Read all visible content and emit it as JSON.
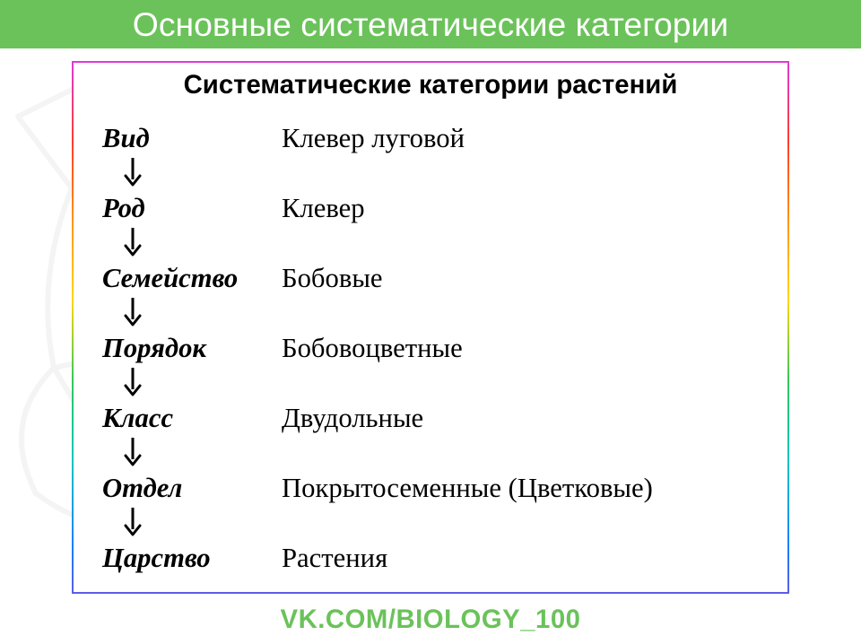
{
  "header": {
    "title": "Основные систематические категории",
    "background_color": "#6bc25a",
    "text_color": "#ffffff",
    "font_size_pt": 28
  },
  "content": {
    "box_title": "Систематические категории растений",
    "box_title_font_size_pt": 22,
    "box_title_color": "#000000",
    "rank_font_size_pt": 23,
    "example_font_size_pt": 23,
    "text_color": "#000000",
    "arrow_color": "#000000",
    "arrow_stroke_width": 3,
    "rows": [
      {
        "rank": "Вид",
        "example": "Клевер луговой"
      },
      {
        "rank": "Род",
        "example": "Клевер"
      },
      {
        "rank": "Семейство",
        "example": "Бобовые"
      },
      {
        "rank": "Порядок",
        "example": "Бобовоцветные"
      },
      {
        "rank": "Класс",
        "example": "Двудольные"
      },
      {
        "rank": "Отдел",
        "example": "Покрытосеменные (Цветковые)"
      },
      {
        "rank": "Царство",
        "example": "Растения"
      }
    ],
    "border_gradient": [
      "#e03ad8",
      "#ff3b30",
      "#ff9500",
      "#ffd60a",
      "#34c759",
      "#00c7be",
      "#0a84ff",
      "#5e5ce6"
    ],
    "background_color": "#ffffff"
  },
  "footer": {
    "text": "VK.COM/BIOLOGY_100",
    "color": "#6bc25a",
    "font_size_pt": 22
  },
  "watermark": {
    "opacity": 0.08,
    "stroke": "#808080"
  }
}
